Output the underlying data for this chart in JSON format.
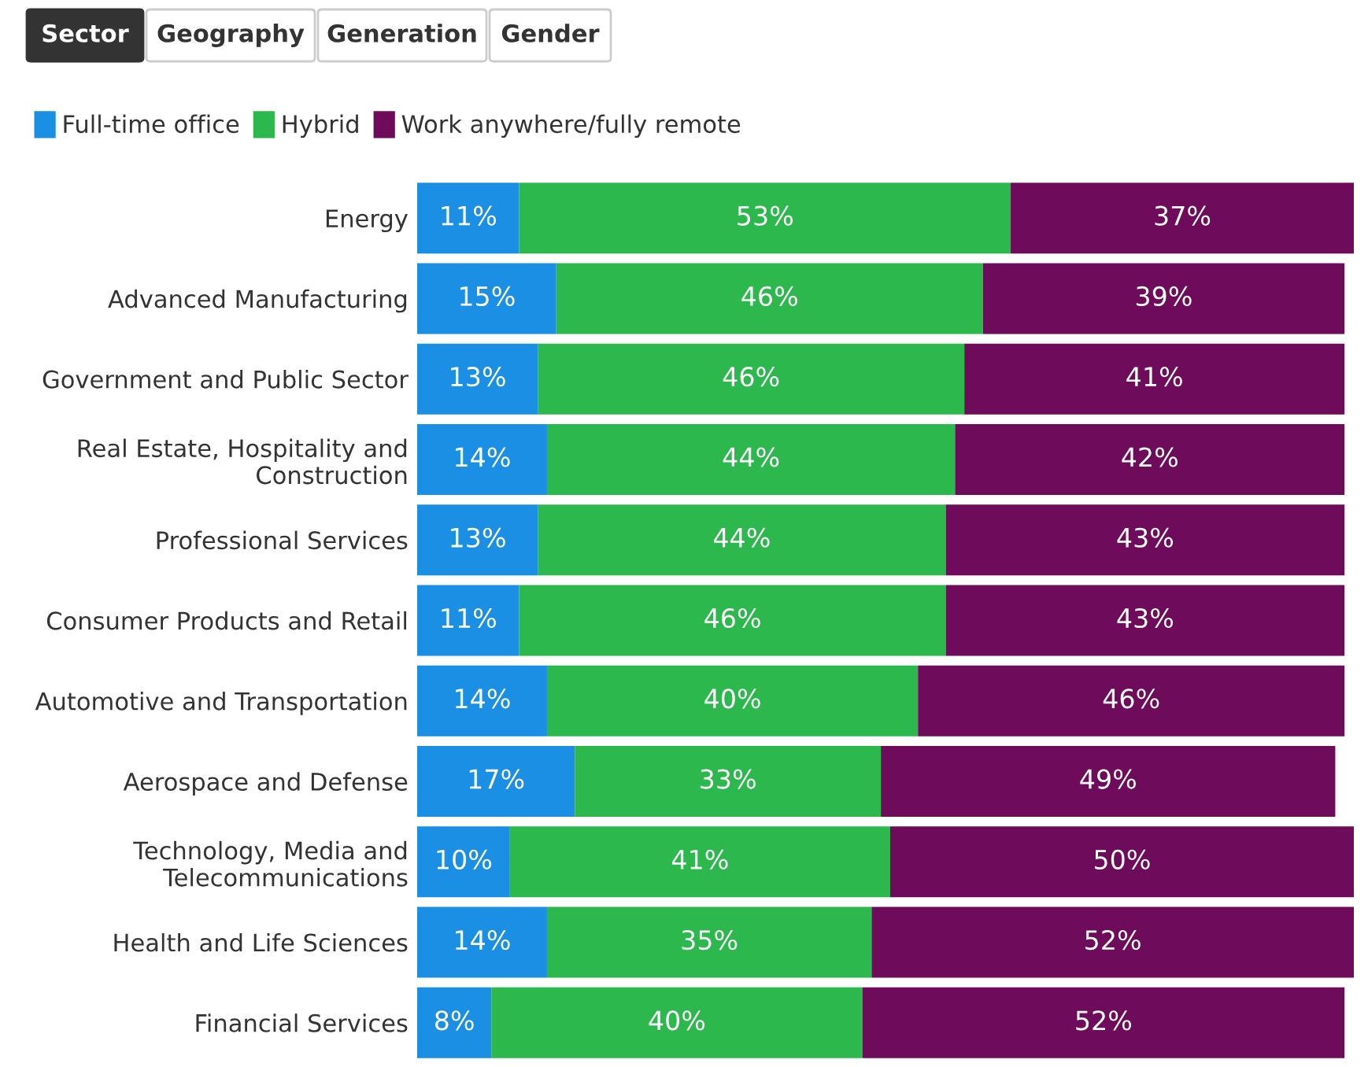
{
  "chart_data": {
    "type": "bar",
    "orientation": "horizontal",
    "stacked": true,
    "legend": "top left",
    "annotations": [
      "Sector",
      "Geography",
      "Generation",
      "Gender"
    ],
    "categories": [
      "Energy",
      "Advanced Manufacturing",
      "Government and Public Sector",
      "Real Estate, Hospitality and\nConstruction",
      "Professional Services",
      "Consumer Products and Retail",
      "Automotive and Transportation",
      "Aerospace and Defense",
      "Technology, Media and\nTelecommunications",
      "Health and Life Sciences",
      "Financial Services"
    ],
    "series": [
      {
        "name": "Full-time office",
        "color": "#1a8fe3",
        "values": [
          11,
          15,
          13,
          14,
          13,
          11,
          14,
          17,
          10,
          14,
          8
        ],
        "value_labels": [
          "11%",
          "15%",
          "13%",
          "14%",
          "13%",
          "11%",
          "14%",
          "17%",
          "10%",
          "14%",
          "8%"
        ]
      },
      {
        "name": "Hybrid",
        "color": "#2db84e",
        "values": [
          53,
          46,
          46,
          44,
          44,
          46,
          40,
          33,
          41,
          35,
          40
        ],
        "value_labels": [
          "53%",
          "46%",
          "46%",
          "44%",
          "44%",
          "46%",
          "40%",
          "33%",
          "41%",
          "35%",
          "40%"
        ]
      },
      {
        "name": "Work anywhere/fully remote",
        "color": "#6e0b5a",
        "values": [
          37,
          39,
          41,
          42,
          43,
          43,
          46,
          49,
          50,
          52,
          52
        ],
        "value_labels": [
          "37%",
          "39%",
          "41%",
          "42%",
          "43%",
          "43%",
          "46%",
          "49%",
          "50%",
          "52%",
          "52%"
        ]
      }
    ]
  }
}
